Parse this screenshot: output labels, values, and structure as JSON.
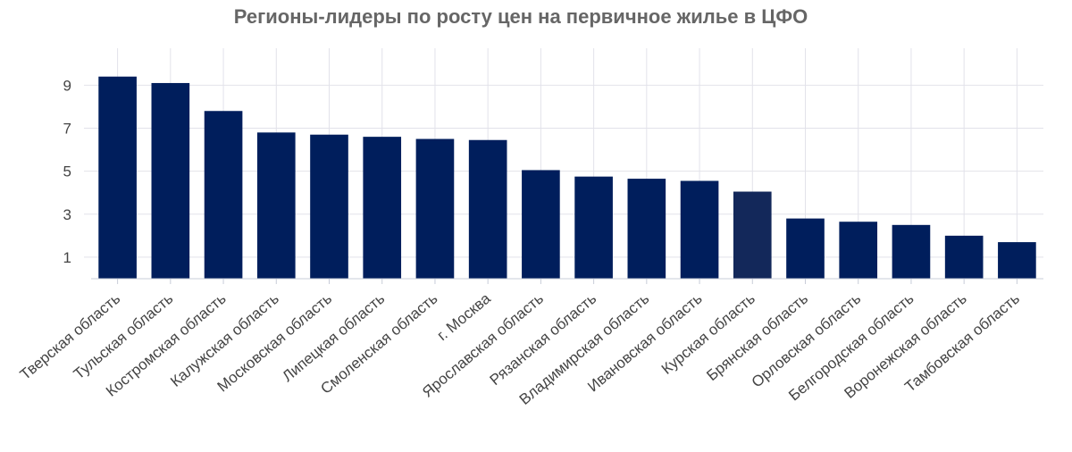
{
  "chart_data": {
    "type": "bar",
    "title": "Регионы-лидеры по росту цен на первичное жилье в ЦФО",
    "xlabel": "",
    "ylabel": "",
    "categories": [
      "Тверская область",
      "Тульская область",
      "Костромская область",
      "Калужская область",
      "Московская область",
      "Липецкая область",
      "Смоленская область",
      "г. Москва",
      "Ярославская область",
      "Рязанская область",
      "Владимирская область",
      "Ивановская область",
      "Курская область",
      "Брянская область",
      "Орловская область",
      "Белгородская область",
      "Воронежская область",
      "Тамбовская область"
    ],
    "values": [
      9.4,
      9.1,
      7.8,
      6.8,
      6.7,
      6.6,
      6.5,
      6.45,
      5.05,
      4.75,
      4.65,
      4.55,
      4.05,
      2.8,
      2.65,
      2.5,
      2.0,
      1.7
    ],
    "ylim": [
      0,
      11.3
    ],
    "yticks": [
      1,
      3,
      5,
      7,
      9
    ],
    "grid": true,
    "legend": "none",
    "colors": {
      "bar": "#001e5c",
      "bar_highlight": "#13285a"
    },
    "highlight_index": 12
  }
}
